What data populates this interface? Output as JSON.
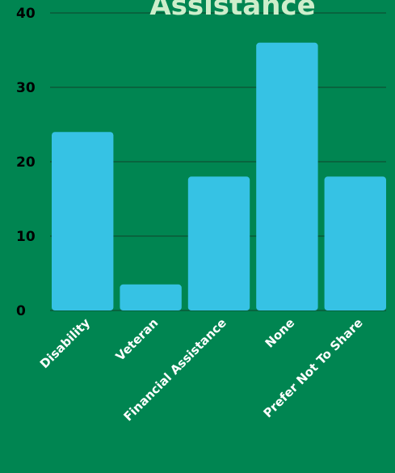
{
  "colors": {
    "background": "#008551",
    "bar": "#36c2e4",
    "gridline": "#0b5a38",
    "title": "#cdeecb",
    "tick_text": "#000000",
    "category_text": "#ffffff"
  },
  "chart_data": {
    "type": "bar",
    "title": "Assistance",
    "categories": [
      "Disability",
      "Veteran",
      "Financial Assistance",
      "None",
      "Prefer Not To Share"
    ],
    "values": [
      24,
      3.5,
      18,
      36,
      18
    ],
    "ylim": [
      0,
      40
    ],
    "yticks": [
      0,
      10,
      20,
      30,
      40
    ],
    "grid": true,
    "legend": "none"
  }
}
